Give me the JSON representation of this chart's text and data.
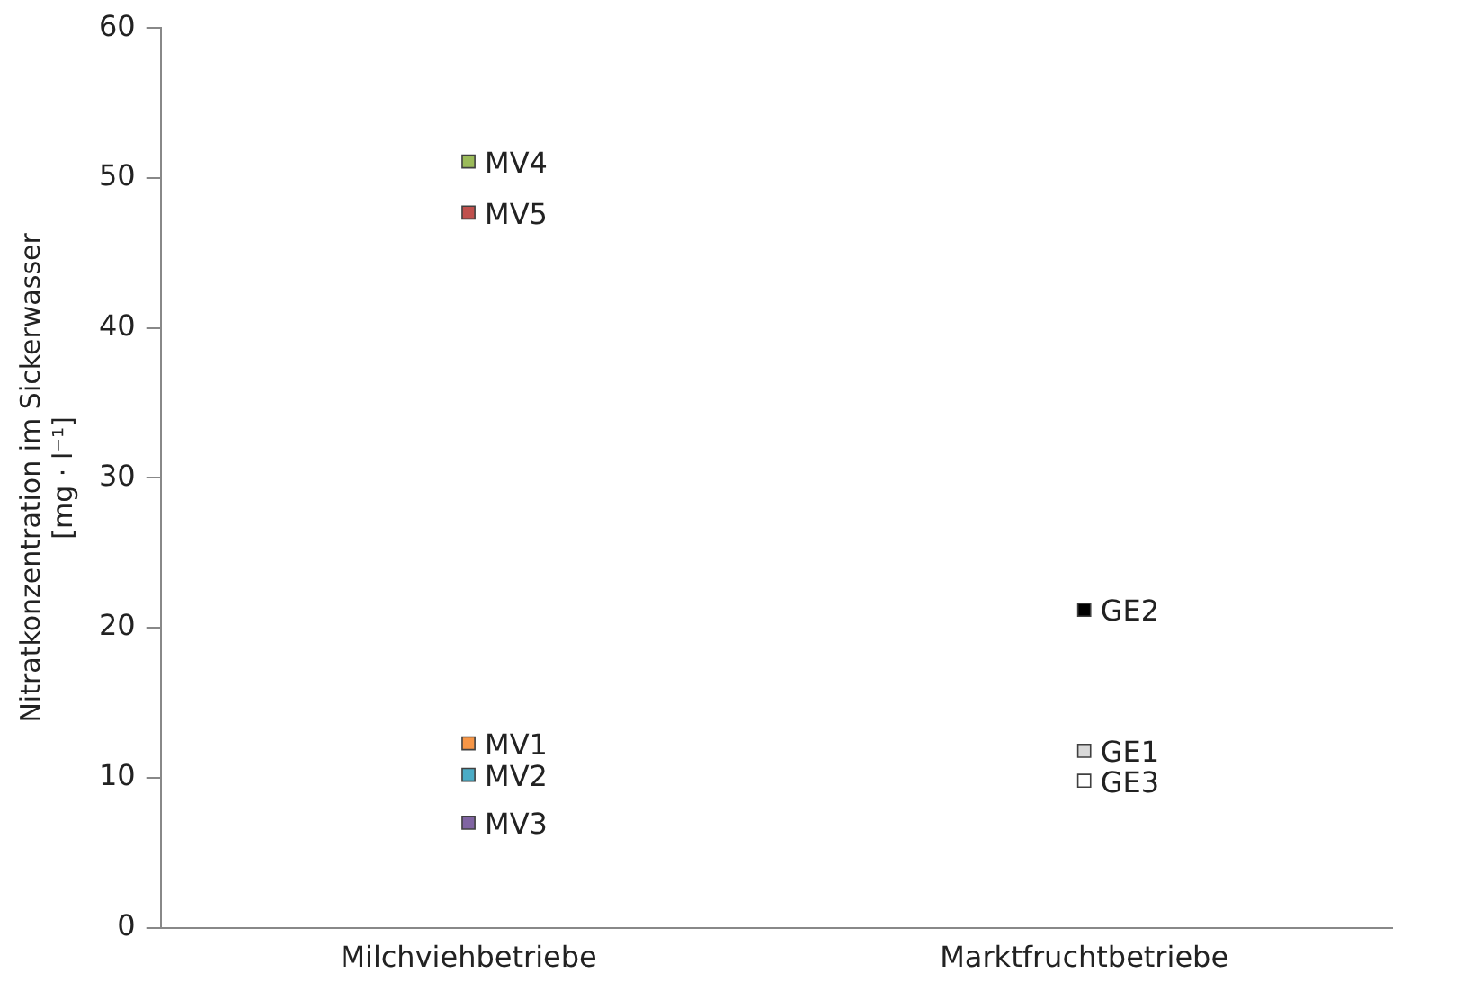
{
  "chart_data": {
    "type": "scatter",
    "ylabel": "Nitratkonzentration im Sickerwasser\n[mg · l⁻¹]",
    "categories": [
      "Milchviehbetriebe",
      "Marktfruchtbetriebe"
    ],
    "ylim": [
      0,
      60
    ],
    "yticks": [
      0,
      10,
      20,
      30,
      40,
      50,
      60
    ],
    "grid": false,
    "legend": false,
    "marker": "square",
    "series": [
      {
        "name": "MV4",
        "color": "#9bbb59",
        "x": [
          "Milchviehbetriebe"
        ],
        "values": [
          51.1
        ]
      },
      {
        "name": "MV5",
        "color": "#c0504d",
        "x": [
          "Milchviehbetriebe"
        ],
        "values": [
          47.7
        ]
      },
      {
        "name": "MV1",
        "color": "#f79646",
        "x": [
          "Milchviehbetriebe"
        ],
        "values": [
          12.3
        ]
      },
      {
        "name": "MV2",
        "color": "#4bacc6",
        "x": [
          "Milchviehbetriebe"
        ],
        "values": [
          10.2
        ]
      },
      {
        "name": "MV3",
        "color": "#8064a2",
        "x": [
          "Milchviehbetriebe"
        ],
        "values": [
          7.0
        ]
      },
      {
        "name": "GE2",
        "color": "#000000",
        "x": [
          "Marktfruchtbetriebe"
        ],
        "values": [
          21.2
        ]
      },
      {
        "name": "GE1",
        "color": "#d9d9d9",
        "x": [
          "Marktfruchtbetriebe"
        ],
        "values": [
          11.8
        ]
      },
      {
        "name": "GE3",
        "color": "#ffffff",
        "x": [
          "Marktfruchtbetriebe"
        ],
        "values": [
          9.8
        ]
      }
    ]
  }
}
